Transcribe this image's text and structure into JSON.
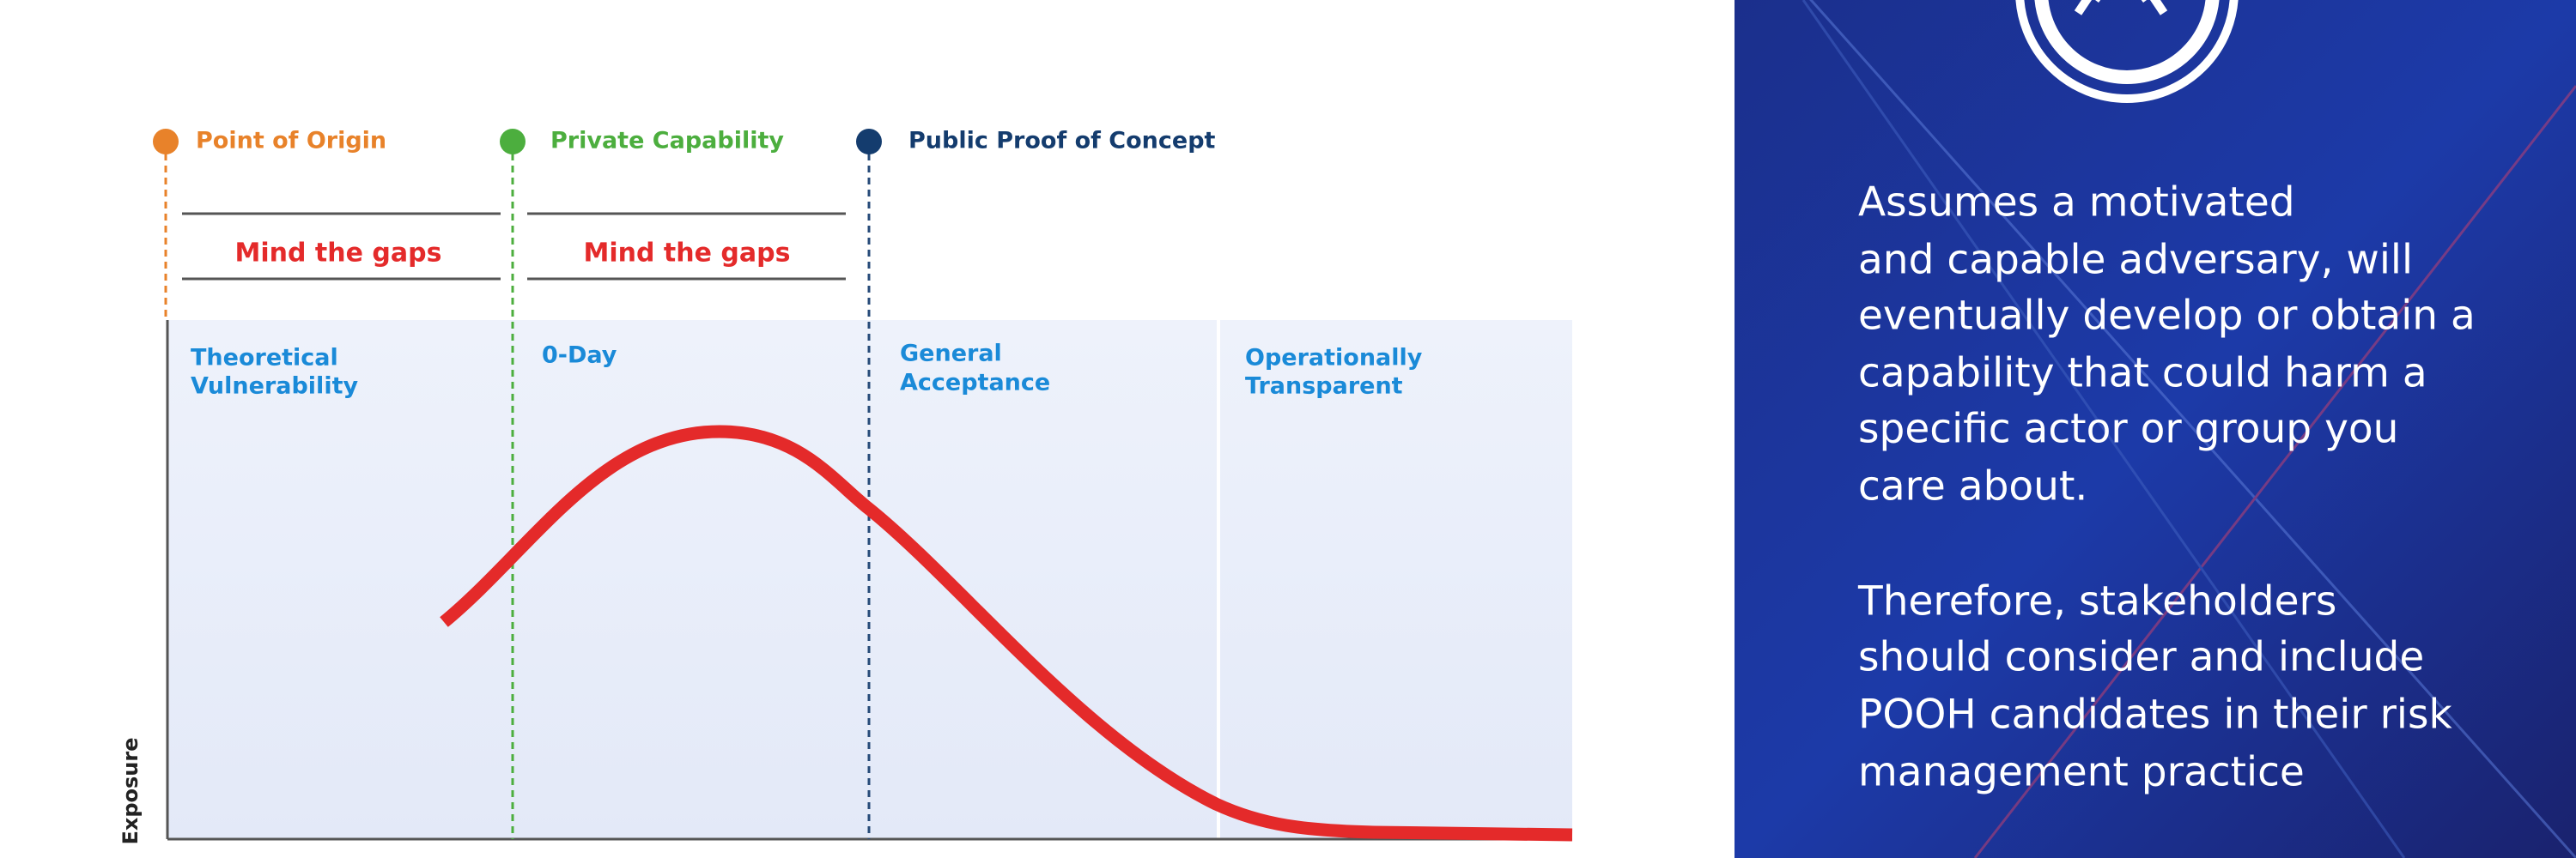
{
  "milestones": [
    {
      "label": "Point of Origin"
    },
    {
      "label": "Private Capability"
    },
    {
      "label": "Public Proof of Concept"
    }
  ],
  "gaps": [
    {
      "label": "Mind the gaps"
    },
    {
      "label": "Mind the gaps"
    }
  ],
  "phases": [
    {
      "lines": [
        "Theoretical",
        "Vulnerability"
      ]
    },
    {
      "lines": [
        "0-Day"
      ]
    },
    {
      "lines": [
        "General",
        "Acceptance"
      ]
    },
    {
      "lines": [
        "Operationally",
        "Transparent"
      ]
    }
  ],
  "y_axis_label": "Exposure",
  "panel": {
    "paragraphs": [
      {
        "lines": [
          "Assumes a motivated",
          "and capable adversary, will",
          "eventually develop or obtain a",
          "capability that could harm a",
          "specific actor or group you",
          "care about."
        ]
      },
      {
        "lines": [
          "Therefore, stakeholders",
          "should consider and include",
          "POOH candidates in their risk",
          "management practice"
        ]
      }
    ]
  }
}
